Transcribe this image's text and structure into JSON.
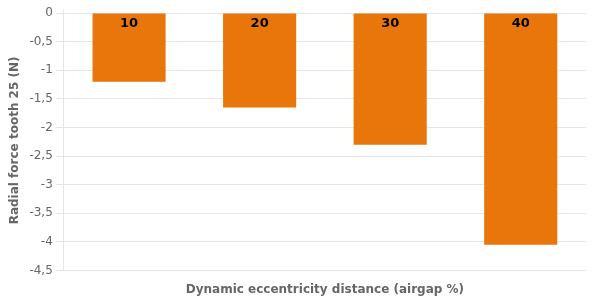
{
  "chart_data": {
    "type": "bar",
    "categories": [
      "10",
      "20",
      "30",
      "40"
    ],
    "values": [
      -1.2,
      -1.65,
      -2.3,
      -4.05
    ],
    "color": "#E8760A",
    "xlabel": "Dynamic eccentricity distance (airgap %)",
    "ylabel": "Radial force tooth 25 (N)",
    "ylim": [
      -4.5,
      0.05
    ],
    "yticks": [
      0,
      {
        "value": -0.5,
        "label": "-0,5"
      },
      -1,
      {
        "value": -1.5,
        "label": "-1,5"
      },
      -2,
      {
        "value": -2.5,
        "label": "-2,5"
      },
      -3,
      {
        "value": -3.5,
        "label": "-3,5"
      },
      -4,
      {
        "value": -4.5,
        "label": "-4,5"
      }
    ],
    "grid": true,
    "tick_labels": "y"
  }
}
